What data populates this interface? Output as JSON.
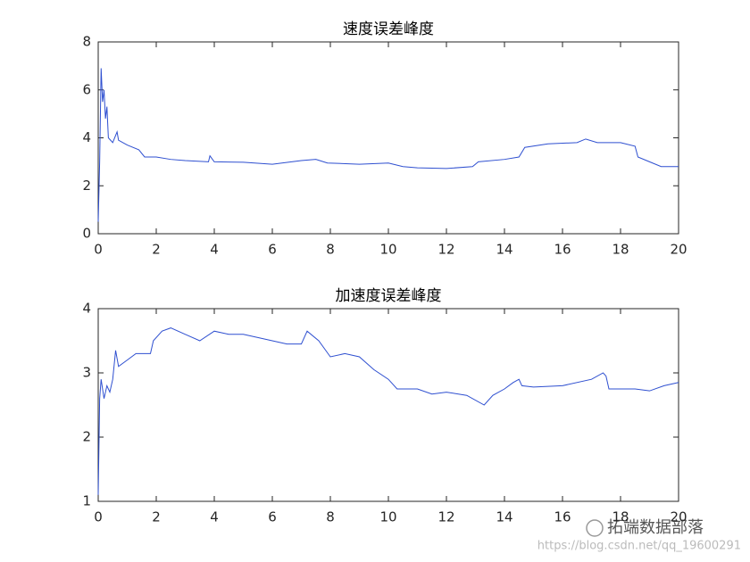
{
  "chart_data": [
    {
      "type": "line",
      "title": "速度误差峰度",
      "x": [
        0,
        0.05,
        0.1,
        0.15,
        0.2,
        0.25,
        0.3,
        0.35,
        0.5,
        0.6,
        0.65,
        0.7,
        1.0,
        1.4,
        1.6,
        2.0,
        2.5,
        3,
        3.8,
        3.85,
        4.0,
        5,
        6,
        7,
        7.5,
        7.9,
        9,
        10,
        10.5,
        11,
        12,
        12.9,
        13.1,
        14,
        14.5,
        14.7,
        15.5,
        16.5,
        16.8,
        17.2,
        18,
        18.5,
        18.6,
        19,
        19.4,
        20
      ],
      "series": [
        {
          "color": "#2e4fd0",
          "values": [
            0.5,
            3,
            6.9,
            5.5,
            6.0,
            4.8,
            5.3,
            4.0,
            3.8,
            4.1,
            4.25,
            3.9,
            3.7,
            3.5,
            3.2,
            3.2,
            3.1,
            3.05,
            3.0,
            3.25,
            3.0,
            2.98,
            2.9,
            3.05,
            3.1,
            2.95,
            2.9,
            2.95,
            2.8,
            2.75,
            2.72,
            2.8,
            3.0,
            3.1,
            3.2,
            3.6,
            3.75,
            3.8,
            3.95,
            3.8,
            3.8,
            3.65,
            3.2,
            3.0,
            2.8,
            2.8
          ]
        }
      ],
      "xlim": [
        0,
        20
      ],
      "xticks": [
        0,
        2,
        4,
        6,
        8,
        10,
        12,
        14,
        16,
        18,
        20
      ],
      "ylim": [
        0,
        8
      ],
      "yticks": [
        0,
        2,
        4,
        6,
        8
      ]
    },
    {
      "type": "line",
      "title": "加速度误差峰度",
      "x": [
        0,
        0.05,
        0.1,
        0.2,
        0.3,
        0.4,
        0.5,
        0.6,
        0.7,
        1.0,
        1.3,
        1.8,
        1.9,
        2.2,
        2.5,
        3,
        3.5,
        4,
        4.5,
        5,
        5.5,
        6,
        6.5,
        7,
        7.2,
        7.6,
        8,
        8.5,
        9,
        9.5,
        10,
        10.3,
        11,
        11.5,
        12,
        12.7,
        13.3,
        13.6,
        14,
        14.3,
        14.5,
        14.6,
        15,
        16,
        17,
        17.4,
        17.5,
        17.6,
        18,
        18.5,
        19,
        19.5,
        20
      ],
      "series": [
        {
          "color": "#2e4fd0",
          "values": [
            1.1,
            2.6,
            2.9,
            2.6,
            2.8,
            2.7,
            2.9,
            3.35,
            3.1,
            3.2,
            3.3,
            3.3,
            3.5,
            3.65,
            3.7,
            3.6,
            3.5,
            3.65,
            3.6,
            3.6,
            3.55,
            3.5,
            3.45,
            3.45,
            3.65,
            3.5,
            3.25,
            3.3,
            3.25,
            3.05,
            2.9,
            2.75,
            2.75,
            2.67,
            2.7,
            2.65,
            2.5,
            2.65,
            2.75,
            2.85,
            2.9,
            2.8,
            2.78,
            2.8,
            2.9,
            3.0,
            2.95,
            2.75,
            2.75,
            2.75,
            2.72,
            2.8,
            2.85
          ]
        }
      ],
      "xlim": [
        0,
        20
      ],
      "xticks": [
        0,
        2,
        4,
        6,
        8,
        10,
        12,
        14,
        16,
        18,
        20
      ],
      "ylim": [
        1,
        4
      ],
      "yticks": [
        1,
        2,
        3,
        4
      ]
    }
  ],
  "watermark": {
    "brand": "拓端数据部落",
    "url": "https://blog.csdn.net/qq_19600291"
  }
}
